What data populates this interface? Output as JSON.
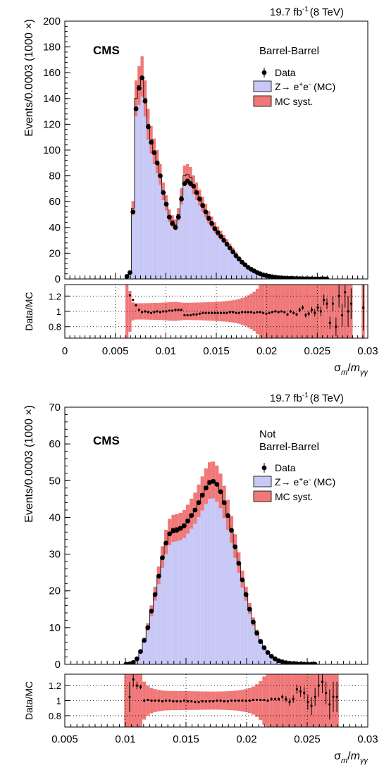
{
  "chart_data": [
    {
      "type": "bar",
      "lumi": "19.7 fb",
      "lumi_exp": "-1",
      "energy": "(8 TeV)",
      "experiment": "CMS",
      "category": [
        "Barrel-Barrel"
      ],
      "ylabel": "Events/0.0003 (1000 ×)",
      "ratio_ylabel": "Data/MC",
      "xlabel": "σ",
      "xlabel_sub": "m",
      "xlabel_slash": "/",
      "xlabel_m": "m",
      "xlabel_msub": "γγ",
      "xlim": [
        0,
        0.03
      ],
      "ylim": [
        0,
        200
      ],
      "ratio_ylim": [
        0.65,
        1.35
      ],
      "xticks": [
        "0",
        "0.005",
        "0.01",
        "0.015",
        "0.02",
        "0.025",
        "0.03"
      ],
      "yticks": [
        "0",
        "20",
        "40",
        "60",
        "80",
        "100",
        "120",
        "140",
        "160",
        "180",
        "200"
      ],
      "ratio_yticks": [
        "0.8",
        "1",
        "1.2"
      ],
      "legend": {
        "data": "Data",
        "mc": "Z→ e",
        "mc_sup1": "+",
        "mc_mid": "e",
        "mc_sup2": "-",
        "mc_end": " (MC)",
        "syst": "MC syst."
      },
      "colors": {
        "mc_fill": "#c8c8f6",
        "syst_fill": "#f07878",
        "data": "#000000"
      },
      "series": {
        "x": [
          0.00585,
          0.00615,
          0.00645,
          0.00675,
          0.00705,
          0.00735,
          0.00765,
          0.00795,
          0.00825,
          0.00855,
          0.00885,
          0.00915,
          0.00945,
          0.00975,
          0.01005,
          0.01035,
          0.01065,
          0.01095,
          0.01125,
          0.01155,
          0.01185,
          0.01215,
          0.01245,
          0.01275,
          0.01305,
          0.01335,
          0.01365,
          0.01395,
          0.01425,
          0.01455,
          0.01485,
          0.01515,
          0.01545,
          0.01575,
          0.01605,
          0.01635,
          0.01665,
          0.01695,
          0.01725,
          0.01755,
          0.01785,
          0.01815,
          0.01845,
          0.01875,
          0.01905,
          0.01935,
          0.01965,
          0.01995,
          0.02025,
          0.02055,
          0.02085,
          0.02115,
          0.02145,
          0.02175,
          0.02205,
          0.02235,
          0.02265,
          0.02295,
          0.02325,
          0.02355,
          0.02385,
          0.02415,
          0.02445,
          0.02475,
          0.02505,
          0.02535,
          0.02565,
          0.02595,
          0.02625,
          0.02655,
          0.02685,
          0.02715,
          0.02745,
          0.02775,
          0.02805,
          0.02835,
          0.02865,
          0.02895,
          0.02925,
          0.02955
        ],
        "data": [
          0,
          2,
          5,
          52,
          132,
          148,
          156,
          138,
          118,
          106,
          98,
          90,
          80,
          67,
          58,
          48,
          43,
          40,
          48,
          62,
          74,
          76,
          74,
          72,
          67,
          62,
          57,
          52,
          47,
          43,
          39,
          36,
          33,
          30,
          27,
          24,
          21,
          18,
          15.5,
          13,
          11,
          9,
          7.5,
          6.2,
          5,
          4,
          3.2,
          2.6,
          2.1,
          1.7,
          1.4,
          1.1,
          0.9,
          0.7,
          0.55,
          0.45,
          0.35,
          0.3,
          0.25,
          0.2,
          0.15,
          0.12,
          0.1,
          0.08,
          0.06,
          0.05,
          0.04,
          0.03,
          0.02,
          0.02,
          0.01,
          0.01,
          0.01,
          0.01,
          0,
          0,
          0,
          0,
          0,
          0
        ],
        "mc": [
          0,
          2,
          6,
          55,
          140,
          150,
          157,
          140,
          120,
          108,
          99,
          91,
          81,
          68,
          59,
          49,
          45,
          42,
          50,
          64,
          80,
          81,
          79,
          73,
          68,
          63,
          58,
          53,
          48,
          44,
          40,
          37,
          34,
          31,
          28,
          25,
          22,
          19,
          16,
          13.5,
          11.2,
          9.2,
          7.6,
          6.3,
          5.1,
          4.1,
          3.3,
          2.7,
          2.2,
          1.8,
          1.4,
          1.1,
          0.9,
          0.7,
          0.55,
          0.45,
          0.35,
          0.3,
          0.25,
          0.2,
          0.15,
          0.12,
          0.1,
          0.08,
          0.06,
          0.05,
          0.04,
          0.03,
          0.02,
          0.02,
          0.01,
          0.01,
          0.01,
          0.01,
          0,
          0,
          0,
          0,
          0,
          0
        ],
        "ratio": [
          null,
          null,
          1.21,
          1.15,
          1.08,
          1.02,
          0.99,
          1,
          0.99,
          0.98,
          0.99,
          1,
          0.99,
          1,
          1,
          1.01,
          1.01,
          1.02,
          1.02,
          1.02,
          0.95,
          0.95,
          0.95,
          0.96,
          0.96,
          0.97,
          0.98,
          0.98,
          0.98,
          0.98,
          0.98,
          0.98,
          0.98,
          0.98,
          0.98,
          0.99,
          0.99,
          0.98,
          0.98,
          0.99,
          0.99,
          0.99,
          0.99,
          0.98,
          0.99,
          0.99,
          0.98,
          0.97,
          0.98,
          0.99,
          1,
          0.99,
          1.0,
          0.99,
          0.96,
          1.0,
          0.98,
          0.96,
          1.02,
          1.05,
          0.95,
          0.97,
          1.02,
          0.98,
          1.05,
          1.0,
          1.15,
          1.1,
          0.85,
          1.1,
          0.8,
          1.2,
          0.95,
          1.25,
          1.0,
          1.1,
          null,
          null,
          null,
          1.05
        ],
        "ratio_err": [
          0,
          0,
          0,
          0,
          0,
          0,
          0,
          0,
          0,
          0,
          0,
          0,
          0,
          0,
          0,
          0,
          0,
          0,
          0,
          0,
          0,
          0,
          0,
          0,
          0,
          0,
          0,
          0,
          0,
          0,
          0,
          0,
          0,
          0,
          0,
          0,
          0,
          0,
          0,
          0,
          0,
          0,
          0,
          0,
          0,
          0,
          0,
          0,
          0,
          0,
          0.01,
          0.01,
          0.01,
          0.01,
          0.02,
          0.02,
          0.02,
          0.02,
          0.03,
          0.03,
          0.03,
          0.03,
          0.04,
          0.05,
          0.05,
          0.06,
          0.07,
          0.07,
          0.08,
          0.1,
          0.12,
          0.15,
          0.15,
          0.2,
          0.2,
          0.2,
          0,
          0,
          0,
          0.3
        ]
      }
    },
    {
      "type": "bar",
      "lumi": "19.7 fb",
      "lumi_exp": "-1",
      "energy": "(8 TeV)",
      "experiment": "CMS",
      "category": [
        "Not",
        "Barrel-Barrel"
      ],
      "ylabel": "Events/0.0003 (1000 ×)",
      "ratio_ylabel": "Data/MC",
      "xlabel": "σ",
      "xlabel_sub": "m",
      "xlabel_slash": "/",
      "xlabel_m": "m",
      "xlabel_msub": "γγ",
      "xlim": [
        0.005,
        0.03
      ],
      "ylim": [
        0,
        70
      ],
      "ratio_ylim": [
        0.65,
        1.35
      ],
      "xticks": [
        "0.005",
        "0.01",
        "0.015",
        "0.02",
        "0.025",
        "0.03"
      ],
      "yticks": [
        "0",
        "10",
        "20",
        "30",
        "40",
        "50",
        "60",
        "70"
      ],
      "ratio_yticks": [
        "0.8",
        "1",
        "1.2"
      ],
      "legend": {
        "data": "Data",
        "mc": "Z→ e",
        "mc_sup1": "+",
        "mc_mid": "e",
        "mc_sup2": "-",
        "mc_end": " (MC)",
        "syst": "MC syst."
      },
      "colors": {
        "mc_fill": "#c8c8f6",
        "syst_fill": "#f07878",
        "data": "#000000"
      },
      "series": {
        "x": [
          0.00885,
          0.00915,
          0.00945,
          0.00975,
          0.01005,
          0.01035,
          0.01065,
          0.01095,
          0.01125,
          0.01155,
          0.01185,
          0.01215,
          0.01245,
          0.01275,
          0.01305,
          0.01335,
          0.01365,
          0.01395,
          0.01425,
          0.01455,
          0.01485,
          0.01515,
          0.01545,
          0.01575,
          0.01605,
          0.01635,
          0.01665,
          0.01695,
          0.01725,
          0.01755,
          0.01785,
          0.01815,
          0.01845,
          0.01875,
          0.01905,
          0.01935,
          0.01965,
          0.01995,
          0.02025,
          0.02055,
          0.02085,
          0.02115,
          0.02145,
          0.02175,
          0.02205,
          0.02235,
          0.02265,
          0.02295,
          0.02325,
          0.02355,
          0.02385,
          0.02415,
          0.02445,
          0.02475,
          0.02505,
          0.02535,
          0.02565,
          0.02595,
          0.02625,
          0.02655,
          0.02685,
          0.02715,
          0.02745,
          0.02775,
          0.02805
        ],
        "data": [
          0,
          0,
          0,
          0,
          0.05,
          0.15,
          0.5,
          1.5,
          3.5,
          6.5,
          10,
          14.5,
          19,
          24,
          29,
          33,
          35.5,
          36.3,
          36.5,
          37,
          37.7,
          39,
          40.5,
          42,
          44,
          46,
          48,
          49.5,
          49.8,
          49,
          47,
          44,
          40.5,
          36.5,
          32,
          27.5,
          23,
          19,
          15,
          11.5,
          8.5,
          6.2,
          4.5,
          3.2,
          2.2,
          1.5,
          1,
          0.7,
          0.45,
          0.3,
          0.2,
          0.15,
          0.1,
          0.07,
          0.05,
          0.04,
          0.03,
          0.02,
          0.015,
          0.01,
          0.01,
          0,
          0,
          0,
          0
        ],
        "mc": [
          0,
          0,
          0,
          0,
          0.05,
          0.15,
          0.5,
          1.5,
          3.6,
          6.6,
          10.2,
          14.6,
          19.2,
          24.2,
          29.2,
          33.3,
          36,
          37,
          37.2,
          37.5,
          38.2,
          39.5,
          41,
          42.5,
          44.5,
          46.5,
          48.5,
          50,
          50.2,
          49.2,
          47.2,
          44.2,
          40.7,
          36.7,
          32.2,
          27.7,
          23.2,
          19.2,
          15.2,
          11.6,
          8.6,
          6.3,
          4.55,
          3.25,
          2.25,
          1.55,
          1.05,
          0.72,
          0.46,
          0.31,
          0.21,
          0.15,
          0.1,
          0.07,
          0.05,
          0.04,
          0.03,
          0.02,
          0.015,
          0.01,
          0.01,
          0,
          0,
          0,
          0
        ],
        "ratio": [
          null,
          null,
          null,
          null,
          null,
          1.05,
          1.28,
          1.2,
          1.18,
          1.0,
          1.01,
          1.0,
          1.0,
          1.0,
          0.99,
          1.0,
          1.0,
          0.99,
          0.99,
          0.99,
          1.0,
          0.99,
          0.99,
          0.98,
          0.98,
          0.99,
          0.99,
          0.99,
          0.99,
          1.0,
          1.0,
          0.99,
          0.99,
          1.0,
          1.0,
          1.0,
          1.0,
          1.0,
          1.0,
          1.01,
          1.01,
          1.01,
          1.01,
          1.0,
          1.02,
          1.02,
          1.02,
          1.05,
          1.02,
          0.98,
          1.02,
          1.15,
          1.12,
          1.1,
          0.98,
          0.93,
          1.05,
          1.2,
          1.25,
          1.1,
          0.95,
          1.05,
          1.05,
          null,
          null
        ],
        "ratio_err": [
          0,
          0,
          0,
          0,
          0,
          0.2,
          0.1,
          0.05,
          0.03,
          0.02,
          0.01,
          0.01,
          0,
          0,
          0,
          0,
          0,
          0,
          0,
          0,
          0,
          0,
          0,
          0,
          0,
          0,
          0,
          0,
          0,
          0,
          0,
          0,
          0,
          0,
          0,
          0,
          0,
          0,
          0,
          0,
          0.01,
          0.01,
          0.01,
          0.01,
          0.02,
          0.02,
          0.02,
          0.03,
          0.04,
          0.05,
          0.05,
          0.06,
          0.07,
          0.08,
          0.1,
          0.12,
          0.12,
          0.15,
          0.15,
          0.15,
          0.2,
          0.2,
          0.2,
          0,
          0
        ]
      }
    }
  ]
}
